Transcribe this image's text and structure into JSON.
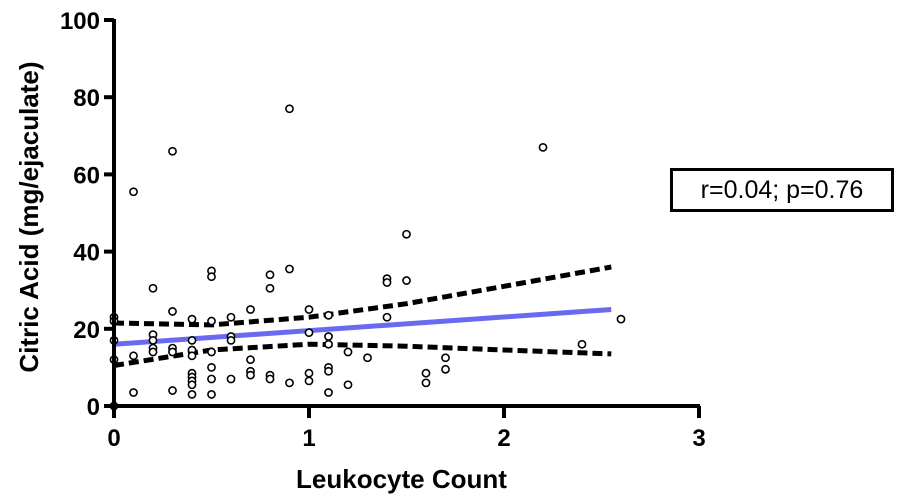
{
  "chart_data": {
    "type": "scatter",
    "xlabel": "Leukocyte Count",
    "ylabel": "Citric Acid (mg/ejaculate)",
    "xlim": [
      0,
      3
    ],
    "ylim": [
      0,
      100
    ],
    "x_ticks": [
      0,
      1,
      2,
      3
    ],
    "y_ticks": [
      0,
      20,
      40,
      60,
      80,
      100
    ],
    "annotation": "r=0.04; p=0.76",
    "points": [
      {
        "x": 0.0,
        "y": 23
      },
      {
        "x": 0.0,
        "y": 22
      },
      {
        "x": 0.0,
        "y": 17
      },
      {
        "x": 0.0,
        "y": 12
      },
      {
        "x": 0.0,
        "y": 0
      },
      {
        "x": 0.1,
        "y": 55.5
      },
      {
        "x": 0.1,
        "y": 13
      },
      {
        "x": 0.1,
        "y": 3.5
      },
      {
        "x": 0.2,
        "y": 30.5
      },
      {
        "x": 0.2,
        "y": 18.5
      },
      {
        "x": 0.2,
        "y": 17
      },
      {
        "x": 0.2,
        "y": 15
      },
      {
        "x": 0.2,
        "y": 14
      },
      {
        "x": 0.3,
        "y": 66
      },
      {
        "x": 0.3,
        "y": 24.5
      },
      {
        "x": 0.3,
        "y": 15
      },
      {
        "x": 0.3,
        "y": 14
      },
      {
        "x": 0.3,
        "y": 4
      },
      {
        "x": 0.4,
        "y": 22.5
      },
      {
        "x": 0.4,
        "y": 17
      },
      {
        "x": 0.4,
        "y": 14.5
      },
      {
        "x": 0.4,
        "y": 13
      },
      {
        "x": 0.4,
        "y": 8.5
      },
      {
        "x": 0.4,
        "y": 7.5
      },
      {
        "x": 0.4,
        "y": 6.5
      },
      {
        "x": 0.4,
        "y": 5.5
      },
      {
        "x": 0.4,
        "y": 3
      },
      {
        "x": 0.5,
        "y": 35
      },
      {
        "x": 0.5,
        "y": 33.5
      },
      {
        "x": 0.5,
        "y": 22
      },
      {
        "x": 0.5,
        "y": 14
      },
      {
        "x": 0.5,
        "y": 10
      },
      {
        "x": 0.5,
        "y": 7
      },
      {
        "x": 0.5,
        "y": 3
      },
      {
        "x": 0.6,
        "y": 23
      },
      {
        "x": 0.6,
        "y": 18
      },
      {
        "x": 0.6,
        "y": 17
      },
      {
        "x": 0.6,
        "y": 7
      },
      {
        "x": 0.7,
        "y": 25
      },
      {
        "x": 0.7,
        "y": 12
      },
      {
        "x": 0.7,
        "y": 9
      },
      {
        "x": 0.7,
        "y": 8
      },
      {
        "x": 0.8,
        "y": 34
      },
      {
        "x": 0.8,
        "y": 30.5
      },
      {
        "x": 0.8,
        "y": 8
      },
      {
        "x": 0.8,
        "y": 7
      },
      {
        "x": 0.9,
        "y": 77
      },
      {
        "x": 0.9,
        "y": 35.5
      },
      {
        "x": 0.9,
        "y": 6
      },
      {
        "x": 1.0,
        "y": 25
      },
      {
        "x": 1.0,
        "y": 19
      },
      {
        "x": 1.0,
        "y": 8.5
      },
      {
        "x": 1.0,
        "y": 6.5
      },
      {
        "x": 1.1,
        "y": 23.5
      },
      {
        "x": 1.1,
        "y": 18
      },
      {
        "x": 1.1,
        "y": 16
      },
      {
        "x": 1.1,
        "y": 10
      },
      {
        "x": 1.1,
        "y": 9
      },
      {
        "x": 1.1,
        "y": 3.5
      },
      {
        "x": 1.2,
        "y": 14
      },
      {
        "x": 1.2,
        "y": 5.5
      },
      {
        "x": 1.3,
        "y": 12.5
      },
      {
        "x": 1.4,
        "y": 33
      },
      {
        "x": 1.4,
        "y": 32
      },
      {
        "x": 1.4,
        "y": 23
      },
      {
        "x": 1.5,
        "y": 44.5
      },
      {
        "x": 1.5,
        "y": 32.5
      },
      {
        "x": 1.6,
        "y": 8.5
      },
      {
        "x": 1.6,
        "y": 6
      },
      {
        "x": 1.7,
        "y": 12.5
      },
      {
        "x": 1.7,
        "y": 9.5
      },
      {
        "x": 2.2,
        "y": 67
      },
      {
        "x": 2.4,
        "y": 16
      },
      {
        "x": 2.6,
        "y": 22.5
      }
    ],
    "regression_line": {
      "x": [
        0,
        2.55
      ],
      "y": [
        16,
        25
      ]
    },
    "confidence_band_upper": {
      "x": [
        0,
        0.5,
        1.0,
        1.5,
        2.0,
        2.55
      ],
      "y": [
        21.5,
        21,
        23,
        26.5,
        31,
        36
      ]
    },
    "confidence_band_lower": {
      "x": [
        0,
        0.5,
        1.0,
        1.5,
        2.0,
        2.55
      ],
      "y": [
        10.5,
        14.5,
        16,
        15.5,
        14.5,
        13.5
      ]
    },
    "colors": {
      "regression": "#6a6af0",
      "confidence": "#000000",
      "points": "#000000"
    }
  }
}
